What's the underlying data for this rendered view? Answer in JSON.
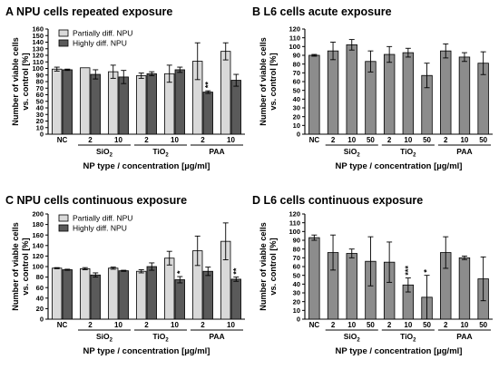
{
  "colors": {
    "light_bar": "#d9d9d9",
    "dark_bar": "#5a5a5a",
    "mid_bar": "#8c8c8c",
    "axis": "#000000"
  },
  "chart_data": [
    {
      "panel": "A",
      "title": "NPU cells repeated exposure",
      "type": "bar",
      "ylabel": [
        "Number of viable cells",
        "vs. control [%]"
      ],
      "xlabel": "NP type / concentration [µg/ml]",
      "ylim": [
        0,
        160
      ],
      "yticks": [
        0,
        10,
        20,
        30,
        40,
        50,
        60,
        70,
        80,
        90,
        100,
        110,
        120,
        130,
        140,
        150,
        160
      ],
      "categories": [
        "NC",
        "2",
        "10",
        "2",
        "10",
        "2",
        "10"
      ],
      "groups": [
        {
          "label": "SiO",
          "sub": "2",
          "from": 1,
          "to": 2
        },
        {
          "label": "TiO",
          "sub": "2",
          "from": 3,
          "to": 4
        },
        {
          "label": "PAA",
          "sub": "",
          "from": 5,
          "to": 6
        }
      ],
      "legend": {
        "position": "top-left"
      },
      "series": [
        {
          "name": "Partially diff. NPU",
          "color": "#d9d9d9",
          "values": [
            99,
            101,
            95,
            89,
            92,
            111,
            126
          ],
          "errors": [
            3,
            0,
            10,
            4,
            13,
            28,
            13
          ]
        },
        {
          "name": "Highly diff. NPU",
          "color": "#5a5a5a",
          "values": [
            98,
            91,
            87,
            92,
            98,
            64,
            82
          ],
          "errors": [
            1,
            7,
            10,
            3,
            4,
            2,
            9
          ]
        }
      ],
      "annotations": [
        {
          "series": 1,
          "index": 5,
          "text": "**"
        }
      ]
    },
    {
      "panel": "B",
      "title": "L6 cells acute exposure",
      "type": "bar",
      "ylabel": [
        "Number of viable cells",
        "vs. control [%]"
      ],
      "xlabel": "NP type / concentration [µg/ml]",
      "ylim": [
        0,
        120
      ],
      "yticks": [
        0,
        10,
        20,
        30,
        40,
        50,
        60,
        70,
        80,
        90,
        100,
        110,
        120
      ],
      "categories": [
        "NC",
        "2",
        "10",
        "50",
        "2",
        "10",
        "50",
        "2",
        "10",
        "50"
      ],
      "groups": [
        {
          "label": "SiO",
          "sub": "2",
          "from": 1,
          "to": 3
        },
        {
          "label": "TiO",
          "sub": "2",
          "from": 4,
          "to": 6
        },
        {
          "label": "PAA",
          "sub": "",
          "from": 7,
          "to": 9
        }
      ],
      "series": [
        {
          "name": "",
          "color": "#8c8c8c",
          "values": [
            90,
            95,
            102,
            83,
            91,
            93,
            67,
            95,
            88,
            81
          ],
          "errors": [
            1,
            10,
            6,
            12,
            9,
            5,
            14,
            8,
            5,
            13
          ]
        }
      ],
      "annotations": []
    },
    {
      "panel": "C",
      "title": "NPU cells continuous exposure",
      "type": "bar",
      "ylabel": [
        "Number of viable cells",
        "vs. control [%]"
      ],
      "xlabel": "NP type / concentration [µg/ml]",
      "ylim": [
        0,
        200
      ],
      "yticks": [
        0,
        20,
        40,
        60,
        80,
        100,
        120,
        140,
        160,
        180,
        200
      ],
      "categories": [
        "NC",
        "2",
        "10",
        "2",
        "10",
        "2",
        "10"
      ],
      "groups": [
        {
          "label": "SiO",
          "sub": "2",
          "from": 1,
          "to": 2
        },
        {
          "label": "TiO",
          "sub": "2",
          "from": 3,
          "to": 4
        },
        {
          "label": "PAA",
          "sub": "",
          "from": 5,
          "to": 6
        }
      ],
      "legend": {
        "position": "top-left"
      },
      "series": [
        {
          "name": "Partially diff. NPU",
          "color": "#d9d9d9",
          "values": [
            97,
            96,
            97,
            91,
            116,
            130,
            148
          ],
          "errors": [
            1,
            2,
            2,
            3,
            13,
            28,
            35
          ]
        },
        {
          "name": "Highly diff. NPU",
          "color": "#5a5a5a",
          "values": [
            94,
            84,
            92,
            100,
            75,
            91,
            76
          ],
          "errors": [
            1,
            4,
            1,
            7,
            6,
            8,
            4
          ]
        }
      ],
      "annotations": [
        {
          "series": 1,
          "index": 4,
          "text": "*"
        },
        {
          "series": 1,
          "index": 6,
          "text": "**"
        }
      ]
    },
    {
      "panel": "D",
      "title": "L6 cells continuous exposure",
      "type": "bar",
      "ylabel": [
        "Number of viable cells",
        "vs. control [%]"
      ],
      "xlabel": "NP type / concentration [µg/ml]",
      "ylim": [
        0,
        120
      ],
      "yticks": [
        0,
        10,
        20,
        30,
        40,
        50,
        60,
        70,
        80,
        90,
        100,
        110,
        120
      ],
      "categories": [
        "NC",
        "2",
        "10",
        "50",
        "2",
        "10",
        "50",
        "2",
        "10",
        "50"
      ],
      "groups": [
        {
          "label": "SiO",
          "sub": "2",
          "from": 1,
          "to": 3
        },
        {
          "label": "TiO",
          "sub": "2",
          "from": 4,
          "to": 6
        },
        {
          "label": "PAA",
          "sub": "",
          "from": 7,
          "to": 9
        }
      ],
      "series": [
        {
          "name": "",
          "color": "#8c8c8c",
          "values": [
            93,
            76,
            75,
            66,
            65,
            39,
            25,
            76,
            70,
            46
          ],
          "errors": [
            3,
            20,
            5,
            28,
            23,
            8,
            25,
            18,
            2,
            25
          ]
        }
      ],
      "annotations": [
        {
          "series": 0,
          "index": 5,
          "text": "***"
        },
        {
          "series": 0,
          "index": 6,
          "text": "*"
        }
      ]
    }
  ]
}
